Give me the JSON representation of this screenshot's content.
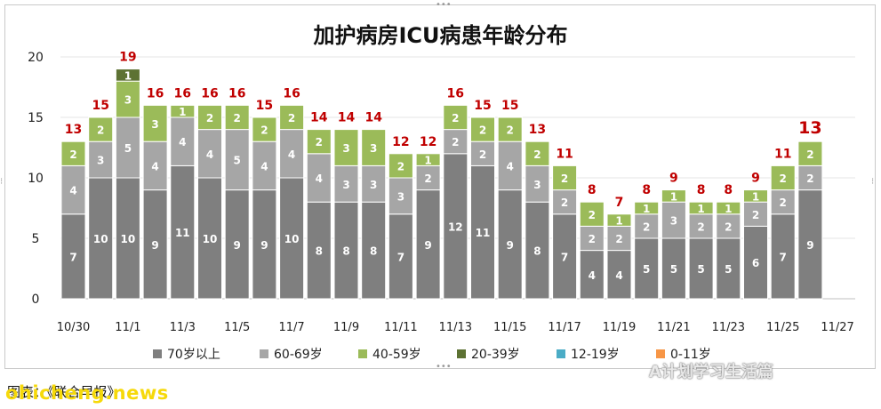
{
  "chart_data": {
    "type": "bar",
    "stacked": true,
    "title": "加护病房ICU病患年龄分布",
    "categories": [
      "10/30",
      "10/31",
      "11/1",
      "11/2",
      "11/3",
      "11/4",
      "11/5",
      "11/6",
      "11/7",
      "11/8",
      "11/9",
      "11/10",
      "11/11",
      "11/12",
      "11/13",
      "11/14",
      "11/15",
      "11/16",
      "11/17",
      "11/18",
      "11/19",
      "11/20",
      "11/21",
      "11/22",
      "11/23",
      "11/24",
      "11/25",
      "11/26"
    ],
    "x_tick_labels": [
      "10/30",
      "11/1",
      "11/3",
      "11/5",
      "11/7",
      "11/9",
      "11/11",
      "11/13",
      "11/15",
      "11/17",
      "11/19",
      "11/21",
      "11/23",
      "11/25",
      "11/27"
    ],
    "ylim": [
      0,
      20
    ],
    "y_ticks": [
      0,
      5,
      10,
      15,
      20
    ],
    "grid": true,
    "legend_position": "bottom",
    "series": [
      {
        "name": "70岁以上",
        "color": "#7f7f7f",
        "values": [
          7,
          10,
          10,
          9,
          11,
          10,
          9,
          9,
          10,
          8,
          8,
          8,
          7,
          9,
          12,
          11,
          9,
          8,
          7,
          4,
          4,
          5,
          5,
          5,
          5,
          6,
          7,
          9
        ]
      },
      {
        "name": "60-69岁",
        "color": "#a6a6a6",
        "values": [
          4,
          3,
          5,
          4,
          4,
          4,
          5,
          4,
          4,
          4,
          3,
          3,
          3,
          2,
          2,
          2,
          4,
          3,
          2,
          2,
          2,
          2,
          3,
          2,
          2,
          2,
          2,
          2
        ]
      },
      {
        "name": "40-59岁",
        "color": "#9bbb59",
        "values": [
          2,
          2,
          3,
          3,
          1,
          2,
          2,
          2,
          2,
          2,
          3,
          3,
          2,
          1,
          2,
          2,
          2,
          2,
          2,
          2,
          1,
          1,
          1,
          1,
          1,
          1,
          2,
          2
        ]
      },
      {
        "name": "20-39岁",
        "color": "#5d7233",
        "values": [
          0,
          0,
          1,
          0,
          0,
          0,
          0,
          0,
          0,
          0,
          0,
          0,
          0,
          0,
          0,
          0,
          0,
          0,
          0,
          0,
          0,
          0,
          0,
          0,
          0,
          0,
          0,
          0
        ]
      },
      {
        "name": "12-19岁",
        "color": "#4bacc6",
        "values": [
          0,
          0,
          0,
          0,
          0,
          0,
          0,
          0,
          0,
          0,
          0,
          0,
          0,
          0,
          0,
          0,
          0,
          0,
          0,
          0,
          0,
          0,
          0,
          0,
          0,
          0,
          0,
          0
        ]
      },
      {
        "name": "0-11岁",
        "color": "#f79646",
        "values": [
          0,
          0,
          0,
          0,
          0,
          0,
          0,
          0,
          0,
          0,
          0,
          0,
          0,
          0,
          0,
          0,
          0,
          0,
          0,
          0,
          0,
          0,
          0,
          0,
          0,
          0,
          0,
          0
        ]
      }
    ],
    "totals": [
      13,
      15,
      19,
      16,
      16,
      16,
      16,
      15,
      16,
      14,
      14,
      14,
      12,
      12,
      16,
      15,
      15,
      13,
      11,
      8,
      7,
      8,
      9,
      8,
      8,
      9,
      11,
      13
    ],
    "total_label_color": "#c00000"
  },
  "footer": {
    "caption": "图表：《联合早报》",
    "watermark_left": "ohicheng.news",
    "watermark_right": "A计划学习生活篇"
  }
}
